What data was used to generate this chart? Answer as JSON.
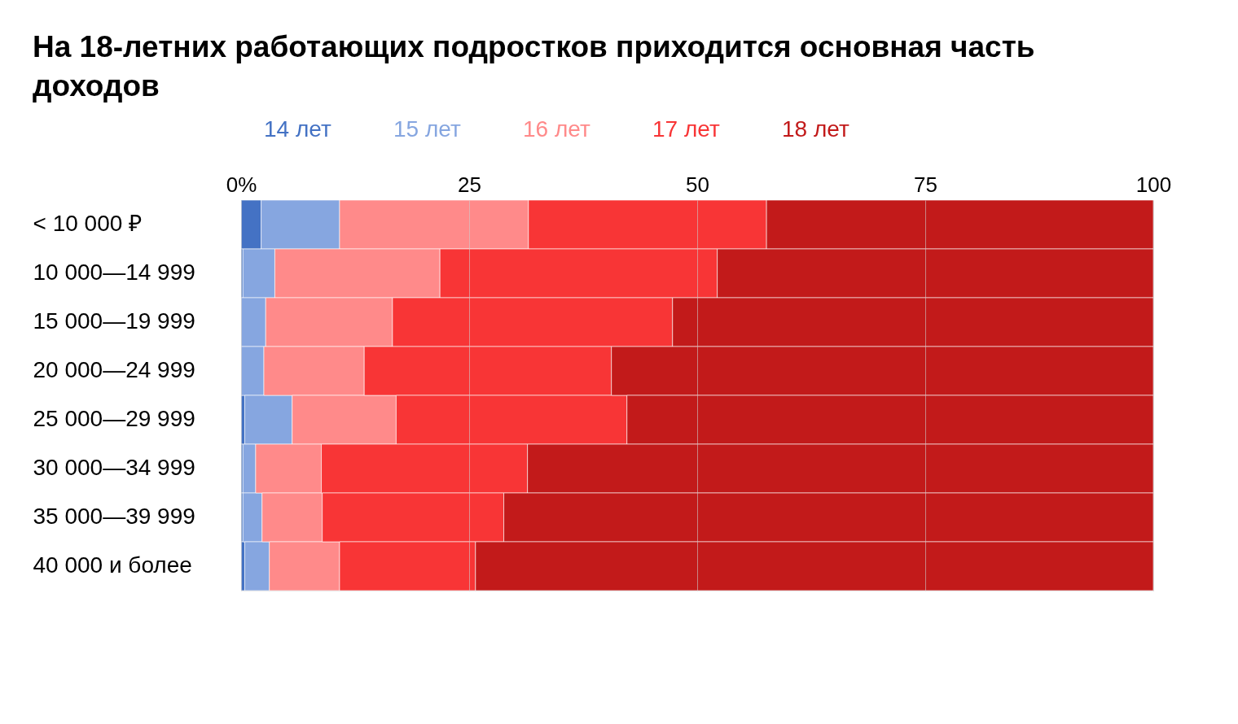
{
  "chart_data": {
    "type": "bar",
    "orientation": "horizontal",
    "stacked": true,
    "title": "На 18-летних работающих подростков приходится основная часть доходов",
    "categories": [
      "< 10 000 ₽",
      "10 000—14 999",
      "15 000—19 999",
      "20 000—24 999",
      "25 000—29 999",
      "30 000—34 999",
      "35 000—39 999",
      "40 000 и более"
    ],
    "series": [
      {
        "name": "14 лет",
        "color": "#4472c4",
        "values": [
          2.2,
          0.2,
          0,
          0,
          0.4,
          0.2,
          0.2,
          0.4
        ]
      },
      {
        "name": "15 лет",
        "color": "#86a6e0",
        "values": [
          8.6,
          3.5,
          2.7,
          2.5,
          5.2,
          1.4,
          2.1,
          2.7
        ]
      },
      {
        "name": "16 лет",
        "color": "#ff8a8a",
        "values": [
          20.7,
          18.1,
          13.9,
          11.0,
          11.4,
          7.2,
          6.6,
          7.7
        ]
      },
      {
        "name": "17 лет",
        "color": "#f83536",
        "values": [
          26.1,
          30.4,
          30.7,
          27.1,
          25.3,
          22.6,
          19.9,
          14.9
        ]
      },
      {
        "name": "18 лет",
        "color": "#c21a1a",
        "values": [
          42.4,
          47.8,
          52.7,
          59.4,
          57.7,
          68.6,
          71.2,
          74.3
        ]
      }
    ],
    "xlim": [
      0,
      100
    ],
    "xticks": [
      {
        "value": 0,
        "label": "0%"
      },
      25,
      50,
      75,
      100
    ],
    "grid": "x",
    "legend": "top left"
  }
}
